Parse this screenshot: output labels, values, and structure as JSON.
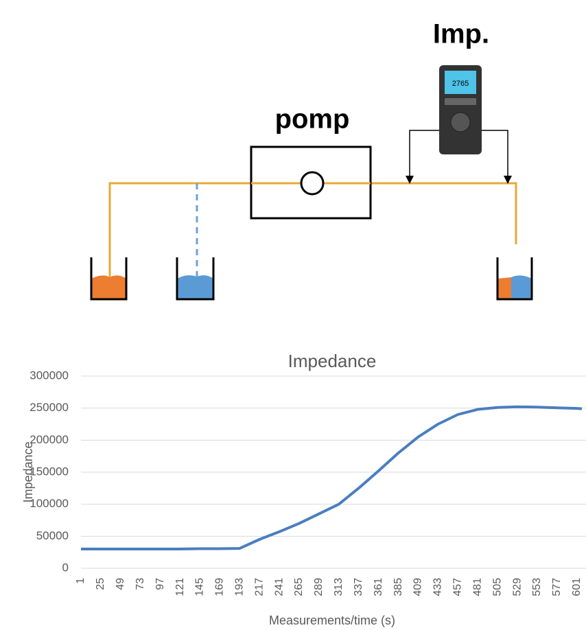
{
  "diagram": {
    "pump_label": "pomp",
    "meter_label": "Imp.",
    "meter_display": "2765"
  },
  "chart_data": {
    "type": "line",
    "title": "Impedance",
    "xlabel": "Measurements/time (s)",
    "ylabel": "Impedance",
    "x": [
      1,
      25,
      49,
      73,
      97,
      121,
      145,
      169,
      193,
      217,
      241,
      265,
      289,
      313,
      337,
      361,
      385,
      409,
      433,
      457,
      481,
      505,
      529,
      553,
      577,
      601,
      607
    ],
    "series": [
      {
        "name": "Impedance",
        "color": "#4a7ebf",
        "values": [
          30000,
          30000,
          30000,
          30000,
          30000,
          30000,
          30500,
          30500,
          31000,
          45000,
          57000,
          70000,
          85000,
          100000,
          125000,
          152000,
          180000,
          205000,
          225000,
          240000,
          248000,
          251000,
          252000,
          251500,
          250500,
          249500,
          249000
        ]
      }
    ],
    "xlim": [
      1,
      607
    ],
    "xticks": [
      1,
      25,
      49,
      73,
      97,
      121,
      145,
      169,
      193,
      217,
      241,
      265,
      289,
      313,
      337,
      361,
      385,
      409,
      433,
      457,
      481,
      505,
      529,
      553,
      577,
      601
    ],
    "ylim": [
      0,
      300000
    ],
    "yticks": [
      0,
      50000,
      100000,
      150000,
      200000,
      250000,
      300000
    ],
    "grid": true
  }
}
